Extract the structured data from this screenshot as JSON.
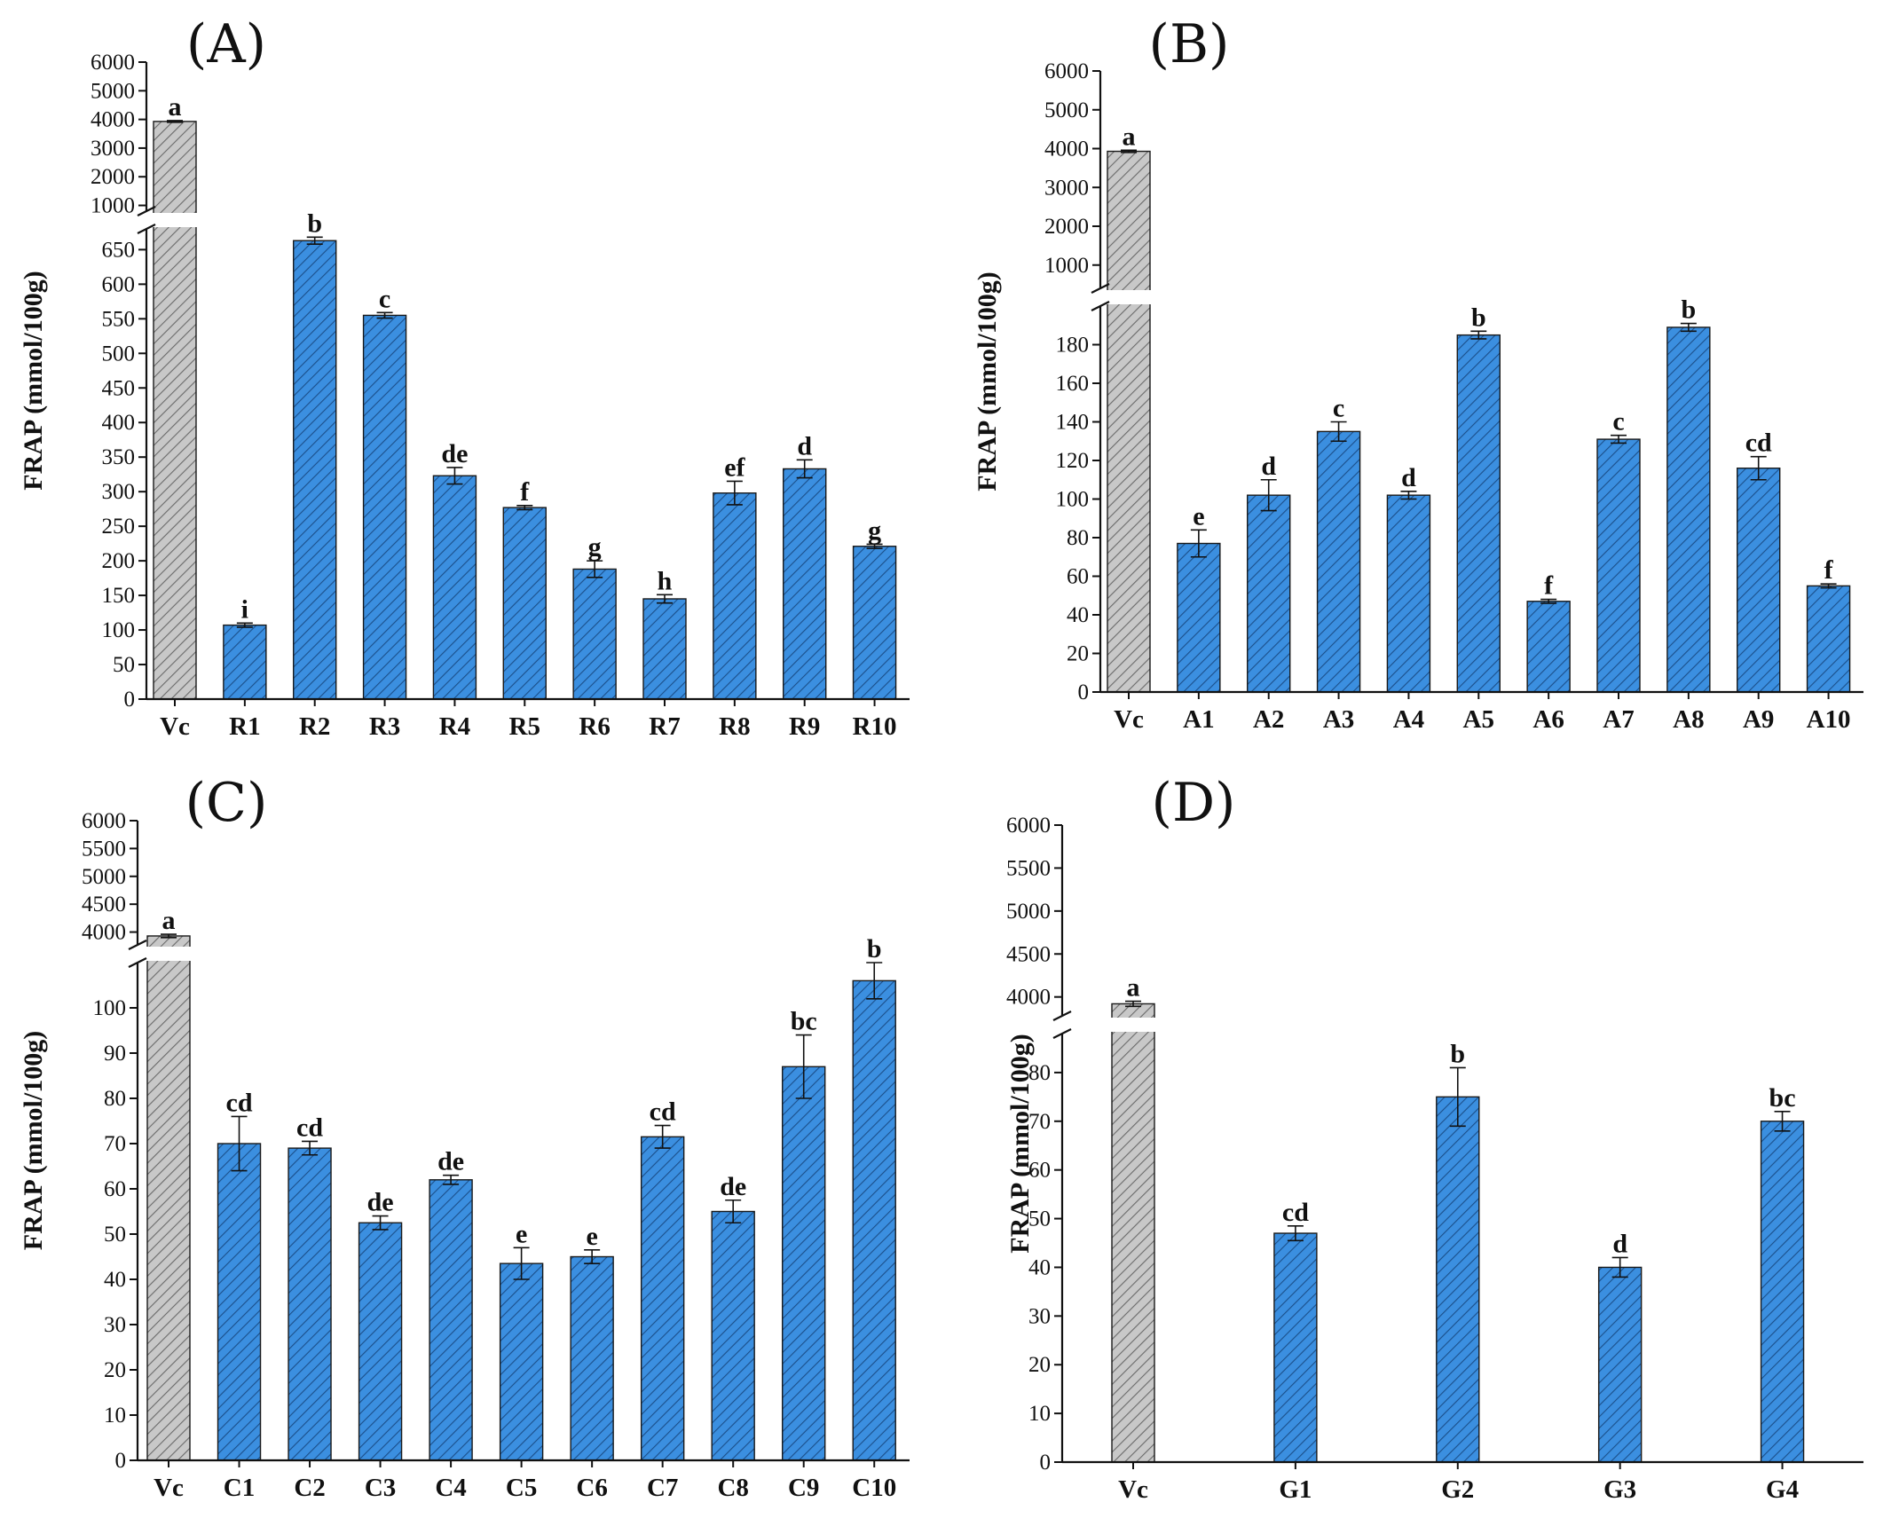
{
  "chart_data": [
    {
      "type": "bar",
      "panel": "(A)",
      "ylabel": "FRAP (mmol/100g)",
      "categories": [
        "Vc",
        "R1",
        "R2",
        "R3",
        "R4",
        "R5",
        "R6",
        "R7",
        "R8",
        "R9",
        "R10"
      ],
      "values": [
        3930,
        107,
        663,
        555,
        323,
        277,
        188,
        145,
        298,
        333,
        221
      ],
      "errors": [
        30,
        3,
        5,
        4,
        12,
        3,
        12,
        6,
        17,
        13,
        3
      ],
      "letters": [
        "a",
        "i",
        "b",
        "c",
        "de",
        "f",
        "g",
        "h",
        "ef",
        "d",
        "g"
      ],
      "y_break": {
        "lower_range": [
          0,
          680
        ],
        "upper_range": [
          800,
          6000
        ]
      },
      "lower_ticks": [
        0,
        50,
        100,
        150,
        200,
        250,
        300,
        350,
        400,
        450,
        500,
        550,
        600,
        650
      ],
      "upper_ticks": [
        1000,
        2000,
        3000,
        4000,
        5000,
        6000
      ],
      "colors": {
        "reference": "#c8c8c8",
        "sample": "#3b8fe0"
      }
    },
    {
      "type": "bar",
      "panel": "(B)",
      "ylabel": "FRAP (mmol/100g)",
      "categories": [
        "Vc",
        "A1",
        "A2",
        "A3",
        "A4",
        "A5",
        "A6",
        "A7",
        "A8",
        "A9",
        "A10"
      ],
      "values": [
        3930,
        77,
        102,
        135,
        102,
        185,
        47,
        131,
        189,
        116,
        55
      ],
      "errors": [
        30,
        7,
        8,
        5,
        2,
        2,
        1,
        2,
        2,
        6,
        1
      ],
      "letters": [
        "a",
        "e",
        "d",
        "c",
        "d",
        "b",
        "f",
        "c",
        "b",
        "cd",
        "f"
      ],
      "y_break": {
        "lower_range": [
          0,
          200
        ],
        "upper_range": [
          400,
          6000
        ]
      },
      "lower_ticks": [
        0,
        20,
        40,
        60,
        80,
        100,
        120,
        140,
        160,
        180
      ],
      "upper_ticks": [
        1000,
        2000,
        3000,
        4000,
        5000,
        6000
      ],
      "colors": {
        "reference": "#c8c8c8",
        "sample": "#3b8fe0"
      }
    },
    {
      "type": "bar",
      "panel": "(C)",
      "ylabel": "FRAP (mmol/100g)",
      "categories": [
        "Vc",
        "C1",
        "C2",
        "C3",
        "C4",
        "C5",
        "C6",
        "C7",
        "C8",
        "C9",
        "C10"
      ],
      "values": [
        3930,
        70,
        69,
        52.5,
        62,
        43.5,
        45,
        71.5,
        55,
        87,
        106
      ],
      "errors": [
        30,
        6,
        1.5,
        1.5,
        1,
        3.5,
        1.5,
        2.5,
        2.5,
        7,
        4
      ],
      "letters": [
        "a",
        "cd",
        "cd",
        "de",
        "de",
        "e",
        "e",
        "cd",
        "de",
        "bc",
        "b"
      ],
      "y_break": {
        "lower_range": [
          0,
          110
        ],
        "upper_range": [
          3770,
          6000
        ]
      },
      "lower_ticks": [
        0,
        10,
        20,
        30,
        40,
        50,
        60,
        70,
        80,
        90,
        100
      ],
      "upper_ticks": [
        4000,
        4500,
        5000,
        5500,
        6000
      ],
      "colors": {
        "reference": "#c8c8c8",
        "sample": "#3b8fe0"
      }
    },
    {
      "type": "bar",
      "panel": "(D)",
      "ylabel": "FRAP (mmol/100g)",
      "categories": [
        "Vc",
        "G1",
        "G2",
        "G3",
        "G4"
      ],
      "values": [
        3920,
        47,
        75,
        40,
        70
      ],
      "errors": [
        30,
        1.5,
        6,
        2,
        2
      ],
      "letters": [
        "a",
        "cd",
        "b",
        "d",
        "bc"
      ],
      "y_break": {
        "lower_range": [
          0,
          88
        ],
        "upper_range": [
          3780,
          6000
        ]
      },
      "lower_ticks": [
        0,
        10,
        20,
        30,
        40,
        50,
        60,
        70,
        80
      ],
      "upper_ticks": [
        4000,
        4500,
        5000,
        5500,
        6000
      ],
      "colors": {
        "reference": "#c8c8c8",
        "sample": "#3b8fe0"
      }
    }
  ]
}
